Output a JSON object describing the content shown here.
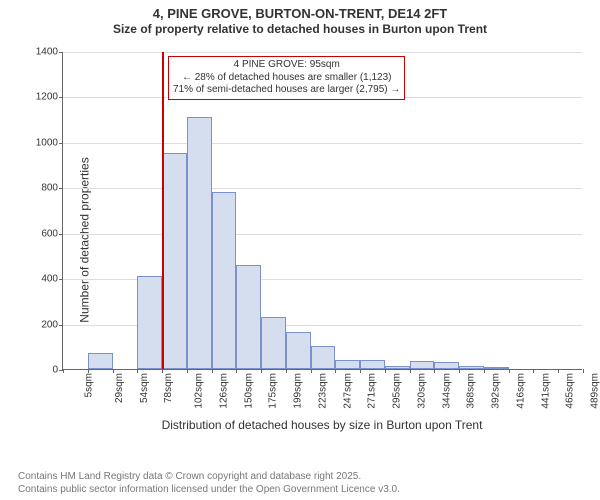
{
  "title": {
    "line1": "4, PINE GROVE, BURTON-ON-TRENT, DE14 2FT",
    "line2": "Size of property relative to detached houses in Burton upon Trent"
  },
  "chart": {
    "type": "histogram",
    "ylabel": "Number of detached properties",
    "xlabel": "Distribution of detached houses by size in Burton upon Trent",
    "ylim": [
      0,
      1400
    ],
    "ytick_step": 200,
    "yticks": [
      0,
      200,
      400,
      600,
      800,
      1000,
      1200,
      1400
    ],
    "categories": [
      "5sqm",
      "29sqm",
      "54sqm",
      "78sqm",
      "102sqm",
      "126sqm",
      "150sqm",
      "175sqm",
      "199sqm",
      "223sqm",
      "247sqm",
      "271sqm",
      "295sqm",
      "320sqm",
      "344sqm",
      "368sqm",
      "392sqm",
      "416sqm",
      "441sqm",
      "465sqm",
      "489sqm"
    ],
    "values": [
      0,
      70,
      0,
      410,
      950,
      1110,
      780,
      460,
      230,
      165,
      100,
      40,
      40,
      15,
      35,
      30,
      15,
      10,
      0,
      0,
      0
    ],
    "bar_fill": "#d5deef",
    "bar_stroke": "#7a92c9",
    "grid_color": "#dddddd",
    "axis_color": "#666666",
    "background_color": "#ffffff",
    "text_color": "#333333",
    "title_fontsize": 13,
    "label_fontsize": 12,
    "tick_fontsize": 10,
    "reference": {
      "x_category_index": 4,
      "line_color": "#cc0000",
      "box": {
        "line1": "4 PINE GROVE: 95sqm",
        "line2": "← 28% of detached houses are smaller (1,123)",
        "line3": "71% of semi-detached houses are larger (2,795) →",
        "border_color": "#cc0000",
        "background": "#ffffff"
      }
    }
  },
  "footer": {
    "line1": "Contains HM Land Registry data © Crown copyright and database right 2025.",
    "line2": "Contains public sector information licensed under the Open Government Licence v3.0.",
    "color": "#777777"
  }
}
